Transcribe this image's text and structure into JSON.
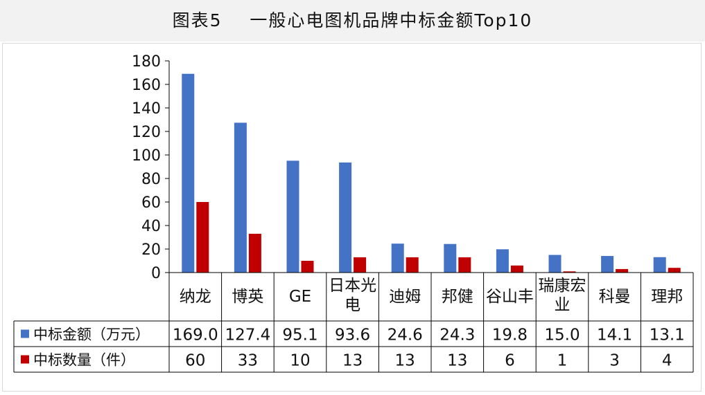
{
  "title": "图表5    一般心电图机品牌中标金额Top10",
  "colors": {
    "amount": "#4472c4",
    "count": "#c00000",
    "grid": "#000000",
    "background": "#f2f2f2"
  },
  "chart_data": {
    "type": "bar",
    "title": "图表5    一般心电图机品牌中标金额Top10",
    "categories": [
      "纳龙",
      "博英",
      "GE",
      "日本光电",
      "迪姆",
      "邦健",
      "谷山丰",
      "瑞康宏业",
      "科曼",
      "理邦"
    ],
    "series": [
      {
        "name": "中标金额（万元）",
        "values": [
          169.0,
          127.4,
          95.1,
          93.6,
          24.6,
          24.3,
          19.8,
          15.0,
          14.1,
          13.1
        ],
        "labels": [
          "169.0",
          "127.4",
          "95.1",
          "93.6",
          "24.6",
          "24.3",
          "19.8",
          "15.0",
          "14.1",
          "13.1"
        ]
      },
      {
        "name": "中标数量（件）",
        "values": [
          60,
          33,
          10,
          13,
          13,
          13,
          6,
          1,
          3,
          4
        ],
        "labels": [
          "60",
          "33",
          "10",
          "13",
          "13",
          "13",
          "6",
          "1",
          "3",
          "4"
        ]
      }
    ],
    "ylim": [
      0,
      180
    ],
    "yticks": [
      0,
      20,
      40,
      60,
      80,
      100,
      120,
      140,
      160,
      180
    ],
    "xlabel": "",
    "ylabel": "",
    "grid": false,
    "legend": "data-table"
  }
}
